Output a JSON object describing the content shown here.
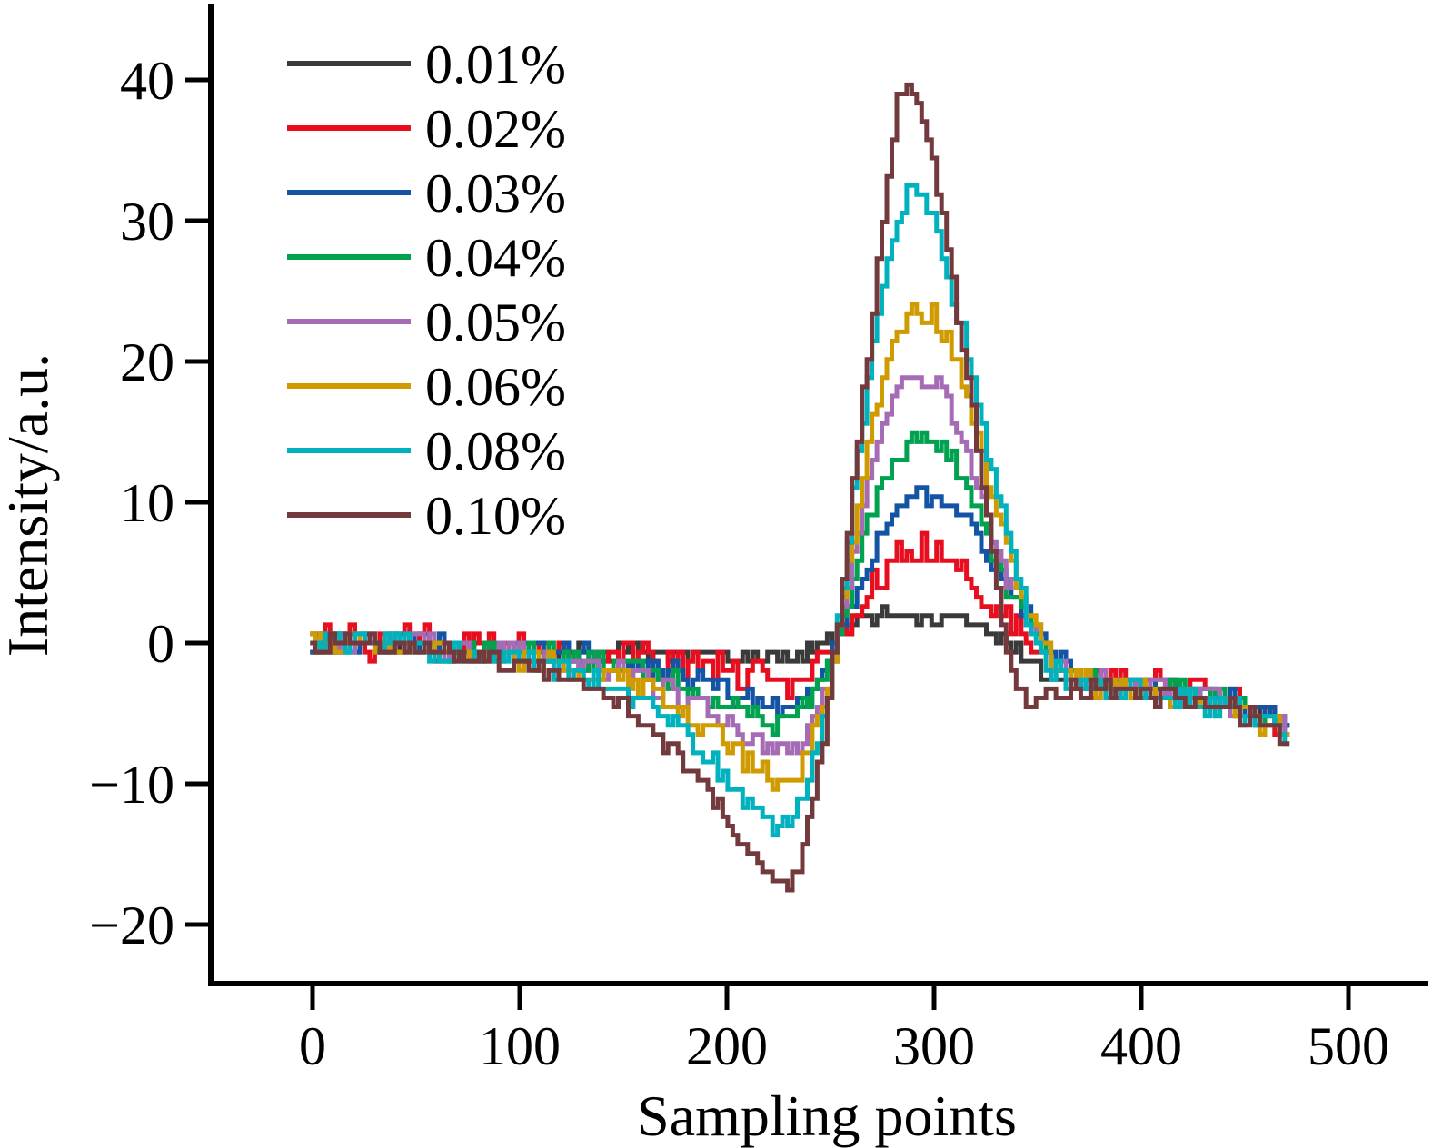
{
  "chart_data": {
    "type": "line",
    "title": "",
    "xlabel": "Sampling points",
    "ylabel": "Intensity/a.u.",
    "xlim": [
      -49,
      540
    ],
    "ylim": [
      -24.2,
      45.7
    ],
    "xtick_values": [
      0,
      100,
      200,
      300,
      400,
      500
    ],
    "xtick_labels": [
      "0",
      "100",
      "200",
      "300",
      "400",
      "500"
    ],
    "ytick_values": [
      -20,
      -10,
      0,
      10,
      20,
      30,
      40
    ],
    "ytick_labels": [
      "−20",
      "−10",
      "0",
      "10",
      "20",
      "30",
      "40"
    ],
    "grid": false,
    "legend_position": "upper-left-inside",
    "x_range_of_data": [
      0,
      472
    ],
    "noise_quantum": 0.65,
    "series": [
      {
        "name": "0.01%",
        "color": "#3a3a3a",
        "noise_amp": 0.55,
        "peak": 1.9,
        "dip": -1.0,
        "points": [
          [
            0,
            0
          ],
          [
            40,
            0
          ],
          [
            80,
            -0.2
          ],
          [
            110,
            -0.4
          ],
          [
            140,
            -0.6
          ],
          [
            170,
            -0.8
          ],
          [
            195,
            -1.0
          ],
          [
            215,
            -1.0
          ],
          [
            228,
            -1.0
          ],
          [
            238,
            -0.7
          ],
          [
            248,
            0.0
          ],
          [
            256,
            0.8
          ],
          [
            264,
            1.6
          ],
          [
            272,
            1.9
          ],
          [
            285,
            1.9
          ],
          [
            300,
            1.9
          ],
          [
            312,
            1.9
          ],
          [
            320,
            1.5
          ],
          [
            328,
            0.8
          ],
          [
            336,
            -0.2
          ],
          [
            344,
            -1.2
          ],
          [
            354,
            -2.2
          ],
          [
            368,
            -2.7
          ],
          [
            385,
            -2.9
          ],
          [
            405,
            -3.1
          ],
          [
            425,
            -3.4
          ],
          [
            442,
            -4.0
          ],
          [
            458,
            -4.9
          ],
          [
            472,
            -6.1
          ]
        ]
      },
      {
        "name": "0.02%",
        "color": "#e60e1f",
        "noise_amp": 1.25,
        "peak": 6.3,
        "dip": -2.7,
        "points": [
          [
            0,
            0
          ],
          [
            40,
            -0.1
          ],
          [
            80,
            -0.3
          ],
          [
            110,
            -0.5
          ],
          [
            140,
            -0.9
          ],
          [
            170,
            -1.4
          ],
          [
            195,
            -2.0
          ],
          [
            210,
            -2.4
          ],
          [
            222,
            -2.7
          ],
          [
            232,
            -2.6
          ],
          [
            242,
            -1.9
          ],
          [
            250,
            -0.6
          ],
          [
            257,
            1.0
          ],
          [
            264,
            3.0
          ],
          [
            271,
            4.6
          ],
          [
            278,
            5.6
          ],
          [
            286,
            6.2
          ],
          [
            295,
            6.3
          ],
          [
            304,
            6.1
          ],
          [
            312,
            5.6
          ],
          [
            320,
            4.6
          ],
          [
            328,
            3.2
          ],
          [
            336,
            1.6
          ],
          [
            344,
            0.0
          ],
          [
            354,
            -1.7
          ],
          [
            368,
            -2.7
          ],
          [
            385,
            -3.0
          ],
          [
            405,
            -3.2
          ],
          [
            425,
            -3.5
          ],
          [
            442,
            -4.1
          ],
          [
            458,
            -5.0
          ],
          [
            472,
            -6.2
          ]
        ]
      },
      {
        "name": "0.03%",
        "color": "#1355a4",
        "noise_amp": 0.8,
        "peak": 10.4,
        "dip": -4.4,
        "points": [
          [
            0,
            0
          ],
          [
            40,
            -0.1
          ],
          [
            80,
            -0.4
          ],
          [
            110,
            -0.7
          ],
          [
            140,
            -1.2
          ],
          [
            160,
            -1.7
          ],
          [
            180,
            -2.5
          ],
          [
            200,
            -3.4
          ],
          [
            212,
            -4.0
          ],
          [
            224,
            -4.4
          ],
          [
            233,
            -4.2
          ],
          [
            242,
            -3.2
          ],
          [
            250,
            -1.2
          ],
          [
            257,
            1.2
          ],
          [
            264,
            4.0
          ],
          [
            271,
            6.8
          ],
          [
            278,
            8.8
          ],
          [
            286,
            10.1
          ],
          [
            294,
            10.4
          ],
          [
            303,
            10.4
          ],
          [
            311,
            10.0
          ],
          [
            318,
            8.8
          ],
          [
            325,
            7.0
          ],
          [
            332,
            5.0
          ],
          [
            340,
            3.0
          ],
          [
            350,
            1.0
          ],
          [
            360,
            -0.8
          ],
          [
            372,
            -2.2
          ],
          [
            385,
            -2.9
          ],
          [
            405,
            -3.1
          ],
          [
            425,
            -3.4
          ],
          [
            442,
            -4.1
          ],
          [
            458,
            -4.9
          ],
          [
            472,
            -6.1
          ]
        ]
      },
      {
        "name": "0.04%",
        "color": "#00a14f",
        "noise_amp": 0.7,
        "peak": 14.7,
        "dip": -5.8,
        "points": [
          [
            0,
            0
          ],
          [
            40,
            -0.1
          ],
          [
            80,
            -0.4
          ],
          [
            110,
            -0.8
          ],
          [
            140,
            -1.4
          ],
          [
            160,
            -2.0
          ],
          [
            180,
            -3.0
          ],
          [
            200,
            -4.3
          ],
          [
            212,
            -5.1
          ],
          [
            224,
            -5.8
          ],
          [
            233,
            -5.5
          ],
          [
            242,
            -4.1
          ],
          [
            250,
            -1.5
          ],
          [
            257,
            2.0
          ],
          [
            264,
            6.0
          ],
          [
            271,
            9.5
          ],
          [
            278,
            12.2
          ],
          [
            285,
            13.8
          ],
          [
            292,
            14.7
          ],
          [
            300,
            14.7
          ],
          [
            308,
            13.5
          ],
          [
            315,
            11.5
          ],
          [
            322,
            9.0
          ],
          [
            330,
            6.2
          ],
          [
            338,
            3.5
          ],
          [
            347,
            1.0
          ],
          [
            357,
            -1.0
          ],
          [
            370,
            -2.4
          ],
          [
            385,
            -3.0
          ],
          [
            405,
            -3.2
          ],
          [
            425,
            -3.5
          ],
          [
            442,
            -4.2
          ],
          [
            458,
            -5.0
          ],
          [
            472,
            -6.2
          ]
        ]
      },
      {
        "name": "0.05%",
        "color": "#a56bb5",
        "noise_amp": 0.75,
        "peak": 19.0,
        "dip": -7.9,
        "points": [
          [
            0,
            0
          ],
          [
            40,
            -0.15
          ],
          [
            80,
            -0.5
          ],
          [
            110,
            -1.0
          ],
          [
            140,
            -1.8
          ],
          [
            160,
            -2.6
          ],
          [
            180,
            -3.9
          ],
          [
            200,
            -5.6
          ],
          [
            212,
            -6.8
          ],
          [
            224,
            -7.9
          ],
          [
            233,
            -7.5
          ],
          [
            242,
            -5.6
          ],
          [
            250,
            -2.2
          ],
          [
            257,
            2.5
          ],
          [
            264,
            8.0
          ],
          [
            271,
            12.8
          ],
          [
            278,
            16.2
          ],
          [
            285,
            18.3
          ],
          [
            292,
            19.0
          ],
          [
            300,
            18.9
          ],
          [
            308,
            17.2
          ],
          [
            315,
            14.2
          ],
          [
            322,
            10.8
          ],
          [
            330,
            7.2
          ],
          [
            338,
            4.0
          ],
          [
            347,
            1.2
          ],
          [
            357,
            -1.2
          ],
          [
            370,
            -2.6
          ],
          [
            385,
            -3.1
          ],
          [
            405,
            -3.3
          ],
          [
            425,
            -3.6
          ],
          [
            442,
            -4.3
          ],
          [
            458,
            -5.1
          ],
          [
            472,
            -6.3
          ]
        ]
      },
      {
        "name": "0.06%",
        "color": "#cf9b00",
        "noise_amp": 0.8,
        "peak": 23.8,
        "dip": -9.9,
        "points": [
          [
            0,
            0
          ],
          [
            40,
            -0.2
          ],
          [
            80,
            -0.6
          ],
          [
            110,
            -1.2
          ],
          [
            140,
            -2.2
          ],
          [
            160,
            -3.2
          ],
          [
            180,
            -4.8
          ],
          [
            200,
            -7.0
          ],
          [
            212,
            -8.5
          ],
          [
            224,
            -9.9
          ],
          [
            233,
            -9.4
          ],
          [
            242,
            -7.0
          ],
          [
            250,
            -2.6
          ],
          [
            257,
            3.5
          ],
          [
            264,
            10.0
          ],
          [
            271,
            15.8
          ],
          [
            278,
            20.0
          ],
          [
            285,
            22.8
          ],
          [
            291,
            23.8
          ],
          [
            296,
            22.9
          ],
          [
            301,
            23.2
          ],
          [
            307,
            21.5
          ],
          [
            314,
            18.5
          ],
          [
            321,
            14.8
          ],
          [
            329,
            10.5
          ],
          [
            337,
            6.2
          ],
          [
            346,
            2.2
          ],
          [
            356,
            -1.0
          ],
          [
            370,
            -2.7
          ],
          [
            385,
            -3.2
          ],
          [
            405,
            -3.4
          ],
          [
            425,
            -3.8
          ],
          [
            442,
            -4.5
          ],
          [
            458,
            -5.4
          ],
          [
            472,
            -6.8
          ]
        ]
      },
      {
        "name": "0.08%",
        "color": "#00b2bd",
        "noise_amp": 0.8,
        "peak": 32.9,
        "dip": -13.3,
        "points": [
          [
            0,
            0
          ],
          [
            40,
            -0.2
          ],
          [
            80,
            -0.8
          ],
          [
            110,
            -1.6
          ],
          [
            140,
            -3.0
          ],
          [
            160,
            -4.4
          ],
          [
            180,
            -6.6
          ],
          [
            200,
            -9.6
          ],
          [
            212,
            -11.6
          ],
          [
            224,
            -13.3
          ],
          [
            233,
            -12.6
          ],
          [
            242,
            -9.2
          ],
          [
            250,
            -3.2
          ],
          [
            257,
            5.0
          ],
          [
            264,
            13.5
          ],
          [
            271,
            21.0
          ],
          [
            278,
            26.5
          ],
          [
            285,
            30.5
          ],
          [
            291,
            32.9
          ],
          [
            296,
            31.0
          ],
          [
            302,
            29.0
          ],
          [
            308,
            25.8
          ],
          [
            315,
            21.5
          ],
          [
            322,
            16.5
          ],
          [
            330,
            11.0
          ],
          [
            338,
            6.0
          ],
          [
            346,
            1.8
          ],
          [
            356,
            -1.6
          ],
          [
            370,
            -2.9
          ],
          [
            385,
            -3.3
          ],
          [
            405,
            -3.6
          ],
          [
            425,
            -4.0
          ],
          [
            442,
            -4.7
          ],
          [
            458,
            -5.5
          ],
          [
            472,
            -7.0
          ]
        ]
      },
      {
        "name": "0.10%",
        "color": "#733a3e",
        "noise_amp": 0.7,
        "peak": 40.0,
        "dip": -17.4,
        "points": [
          [
            0,
            0
          ],
          [
            40,
            -0.25
          ],
          [
            80,
            -1.0
          ],
          [
            110,
            -2.0
          ],
          [
            140,
            -3.8
          ],
          [
            160,
            -5.6
          ],
          [
            180,
            -8.4
          ],
          [
            200,
            -12.2
          ],
          [
            210,
            -14.5
          ],
          [
            220,
            -16.5
          ],
          [
            227,
            -17.4
          ],
          [
            234,
            -16.2
          ],
          [
            241,
            -12.5
          ],
          [
            248,
            -6.0
          ],
          [
            254,
            1.0
          ],
          [
            260,
            9.0
          ],
          [
            266,
            17.0
          ],
          [
            272,
            25.0
          ],
          [
            277,
            31.0
          ],
          [
            281,
            36.0
          ],
          [
            284,
            39.5
          ],
          [
            287,
            40.0
          ],
          [
            290,
            38.3
          ],
          [
            293,
            39.2
          ],
          [
            297,
            36.0
          ],
          [
            302,
            32.5
          ],
          [
            308,
            27.5
          ],
          [
            315,
            20.5
          ],
          [
            322,
            13.0
          ],
          [
            329,
            6.0
          ],
          [
            335,
            0.5
          ],
          [
            340,
            -3.0
          ],
          [
            346,
            -4.2
          ],
          [
            354,
            -3.7
          ],
          [
            368,
            -3.4
          ],
          [
            385,
            -3.4
          ],
          [
            405,
            -3.6
          ],
          [
            425,
            -4.0
          ],
          [
            442,
            -4.6
          ],
          [
            458,
            -5.4
          ],
          [
            472,
            -6.9
          ]
        ]
      }
    ]
  }
}
